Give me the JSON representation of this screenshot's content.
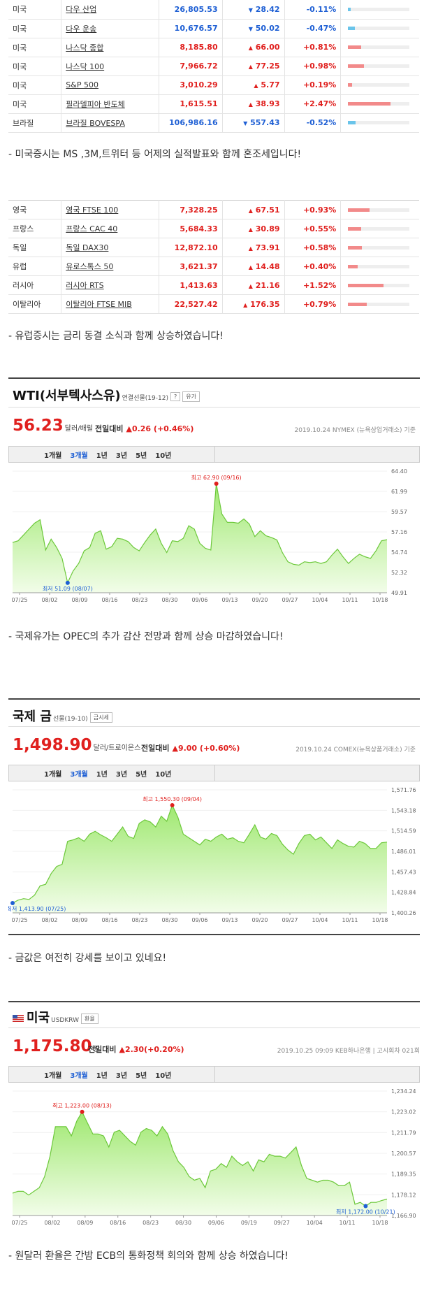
{
  "us_table": [
    {
      "country": "미국",
      "name": "다우 산업",
      "price": "26,805.53",
      "change": "28.42",
      "dir": "down",
      "pct": "-0.11%",
      "barw": 3,
      "color": "#6ac4ea"
    },
    {
      "country": "미국",
      "name": "다우 운송",
      "price": "10,676.57",
      "change": "50.02",
      "dir": "down",
      "pct": "-0.47%",
      "barw": 9,
      "color": "#6ac4ea"
    },
    {
      "country": "미국",
      "name": "나스닥 종합",
      "price": "8,185.80",
      "change": "66.00",
      "dir": "up",
      "pct": "+0.81%",
      "barw": 17,
      "color": "#f28a8a"
    },
    {
      "country": "미국",
      "name": "나스닥 100",
      "price": "7,966.72",
      "change": "77.25",
      "dir": "up",
      "pct": "+0.98%",
      "barw": 21,
      "color": "#f28a8a"
    },
    {
      "country": "미국",
      "name": "S&P 500",
      "price": "3,010.29",
      "change": "5.77",
      "dir": "up",
      "pct": "+0.19%",
      "barw": 5,
      "color": "#f28a8a"
    },
    {
      "country": "미국",
      "name": "필라델피아 반도체",
      "price": "1,615.51",
      "change": "38.93",
      "dir": "up",
      "pct": "+2.47%",
      "barw": 55,
      "color": "#f28a8a"
    },
    {
      "country": "브라질",
      "name": "브라질 BOVESPA",
      "price": "106,986.16",
      "change": "557.43",
      "dir": "down",
      "pct": "-0.52%",
      "barw": 10,
      "color": "#6ac4ea"
    }
  ],
  "note1": "- 미국증시는 MS ,3M,트위터 등 어제의 실적발표와 함께 혼조세입니다!",
  "eu_table": [
    {
      "country": "영국",
      "name": "영국 FTSE 100",
      "price": "7,328.25",
      "change": "67.51",
      "dir": "up",
      "pct": "+0.93%",
      "barw": 28,
      "color": "#f28a8a"
    },
    {
      "country": "프랑스",
      "name": "프랑스 CAC 40",
      "price": "5,684.33",
      "change": "30.89",
      "dir": "up",
      "pct": "+0.55%",
      "barw": 17,
      "color": "#f28a8a"
    },
    {
      "country": "독일",
      "name": "독일 DAX30",
      "price": "12,872.10",
      "change": "73.91",
      "dir": "up",
      "pct": "+0.58%",
      "barw": 18,
      "color": "#f28a8a"
    },
    {
      "country": "유럽",
      "name": "유로스톡스 50",
      "price": "3,621.37",
      "change": "14.48",
      "dir": "up",
      "pct": "+0.40%",
      "barw": 12,
      "color": "#f28a8a"
    },
    {
      "country": "러시아",
      "name": "러시아 RTS",
      "price": "1,413.63",
      "change": "21.16",
      "dir": "up",
      "pct": "+1.52%",
      "barw": 46,
      "color": "#f28a8a"
    },
    {
      "country": "이탈리아",
      "name": "이탈리아 FTSE MIB",
      "price": "22,527.42",
      "change": "176.35",
      "dir": "up",
      "pct": "+0.79%",
      "barw": 24,
      "color": "#f28a8a"
    }
  ],
  "note2": "- 유럽증시는 금리 동결 소식과 함께 상승하였습니다!",
  "note3": "- 국제유가는 OPEC의 추가 감산 전망과 함께 상승 마감하였습니다!",
  "note4": "- 금값은 여전히 강세를 보이고 있네요!",
  "note5": "- 원달러 환율은 간밤 ECB의 통화정책 회의와 함께 상승 하였습니다!",
  "chart_data": [
    {
      "type": "area",
      "title": "WTI(서부텍사스유)",
      "subtitle": "연결선물(19-12)",
      "tag": "유가",
      "value": "56.23",
      "unit": "달러/배럴",
      "change_label": "전일대비",
      "change": "▲0.26 (+0.46%)",
      "date": "2019.10.24  NYMEX (뉴욕상업거래소) 기준",
      "tabs": [
        "1개월",
        "3개월",
        "1년",
        "3년",
        "5년",
        "10년"
      ],
      "active_tab": 1,
      "yticks": [
        "64.40",
        "61.99",
        "59.57",
        "57.16",
        "54.74",
        "52.32",
        "49.91"
      ],
      "ylim": [
        49.91,
        64.4
      ],
      "xticks": [
        "07/25",
        "08/02",
        "08/09",
        "08/16",
        "08/23",
        "08/30",
        "09/06",
        "09/13",
        "09/20",
        "09/27",
        "10/04",
        "10/11",
        "10/18"
      ],
      "values": [
        55.9,
        56.1,
        56.8,
        57.5,
        58.2,
        58.6,
        55.0,
        56.3,
        55.3,
        54.0,
        51.09,
        52.5,
        53.4,
        54.9,
        55.3,
        57.0,
        57.3,
        55.1,
        55.4,
        56.4,
        56.3,
        56.0,
        55.3,
        54.9,
        55.9,
        56.8,
        57.5,
        55.8,
        54.7,
        56.1,
        56.0,
        56.4,
        57.9,
        57.5,
        55.8,
        55.2,
        55.0,
        62.9,
        59.3,
        58.3,
        58.3,
        58.2,
        58.7,
        58.1,
        56.6,
        57.3,
        56.7,
        56.5,
        56.2,
        54.7,
        53.6,
        53.3,
        53.2,
        53.6,
        53.5,
        53.6,
        53.4,
        53.6,
        54.4,
        55.1,
        54.2,
        53.4,
        54.0,
        54.5,
        54.2,
        54.0,
        54.9,
        56.1,
        56.23
      ],
      "high": {
        "label": "최고 62.90 (09/16)",
        "value": 62.9
      },
      "low": {
        "label": "최저 51.09 (08/07)",
        "value": 51.09
      }
    },
    {
      "type": "area",
      "title": "국제 금",
      "subtitle": "선물(19-10)",
      "tag": "금시세",
      "value": "1,498.90",
      "unit": "달러/트로이온스",
      "change_label": "전일대비",
      "change": "▲9.00 (+0.60%)",
      "date": "2019.10.24  COMEX(뉴욕상품거래소) 기준",
      "tabs": [
        "1개월",
        "3개월",
        "1년",
        "3년",
        "5년",
        "10년"
      ],
      "active_tab": 1,
      "yticks": [
        "1,571.76",
        "1,543.18",
        "1,514.59",
        "1,486.01",
        "1,457.43",
        "1,428.84",
        "1,400.26"
      ],
      "ylim": [
        1400.26,
        1571.76
      ],
      "xticks": [
        "07/25",
        "08/02",
        "08/09",
        "08/16",
        "08/23",
        "08/30",
        "09/06",
        "09/13",
        "09/20",
        "09/27",
        "10/04",
        "10/11",
        "10/18"
      ],
      "values": [
        1413.9,
        1418,
        1420,
        1419,
        1425,
        1438,
        1440,
        1455,
        1465,
        1468,
        1500,
        1502,
        1505,
        1500,
        1510,
        1514,
        1509,
        1505,
        1500,
        1510,
        1520,
        1507,
        1504,
        1525,
        1530,
        1527,
        1520,
        1535,
        1528,
        1550.3,
        1534,
        1510,
        1505,
        1500,
        1495,
        1503,
        1500,
        1506,
        1510,
        1503,
        1505,
        1500,
        1498,
        1510,
        1523,
        1506,
        1503,
        1511,
        1508,
        1496,
        1488,
        1482,
        1497,
        1508,
        1510,
        1502,
        1506,
        1498,
        1490,
        1502,
        1497,
        1493,
        1492,
        1500,
        1497,
        1490,
        1490,
        1498,
        1498.9
      ],
      "high": {
        "label": "최고 1,550.30 (09/04)",
        "value": 1550.3
      },
      "low": {
        "label": "최저 1,413.90 (07/25)",
        "value": 1413.9
      }
    },
    {
      "type": "area",
      "title": "미국",
      "subtitle": "USDKRW",
      "tag": "환율",
      "value": "1,175.80",
      "unit": "원",
      "change_label": "전일대비",
      "change": "▲2.30(+0.20%)",
      "date": "2019.10.25 09:09  KEB하나은행  |  고시회차 021회",
      "tabs": [
        "1개월",
        "3개월",
        "1년",
        "3년",
        "5년",
        "10년"
      ],
      "active_tab": 1,
      "yticks": [
        "1,234.24",
        "1,223.02",
        "1,211.79",
        "1,200.57",
        "1,189.35",
        "1,178.12",
        "1,166.90"
      ],
      "ylim": [
        1166.9,
        1234.24
      ],
      "xticks": [
        "07/25",
        "08/02",
        "08/09",
        "08/16",
        "08/23",
        "08/30",
        "09/06",
        "09/19",
        "09/27",
        "10/04",
        "10/11",
        "10/18"
      ],
      "values": [
        1179,
        1180,
        1180,
        1178,
        1180,
        1182,
        1188,
        1199,
        1215,
        1215,
        1215,
        1210,
        1218,
        1223,
        1217,
        1211,
        1211,
        1210,
        1204,
        1212,
        1213,
        1210,
        1207,
        1205,
        1212,
        1214,
        1213,
        1210,
        1215,
        1211,
        1202,
        1196,
        1193,
        1188,
        1186,
        1187,
        1182,
        1191,
        1192,
        1195,
        1193,
        1199,
        1196,
        1194,
        1196,
        1191,
        1197,
        1196,
        1200,
        1199,
        1199,
        1198,
        1201,
        1204,
        1194,
        1187,
        1186,
        1185,
        1186,
        1186,
        1185,
        1183,
        1183,
        1185,
        1173,
        1174,
        1172,
        1174,
        1174,
        1175,
        1175.8
      ],
      "high": {
        "label": "최고 1,223.00 (08/13)",
        "value": 1223
      },
      "low": {
        "label": "최저 1,172.00 (10/21)",
        "value": 1172
      }
    }
  ]
}
